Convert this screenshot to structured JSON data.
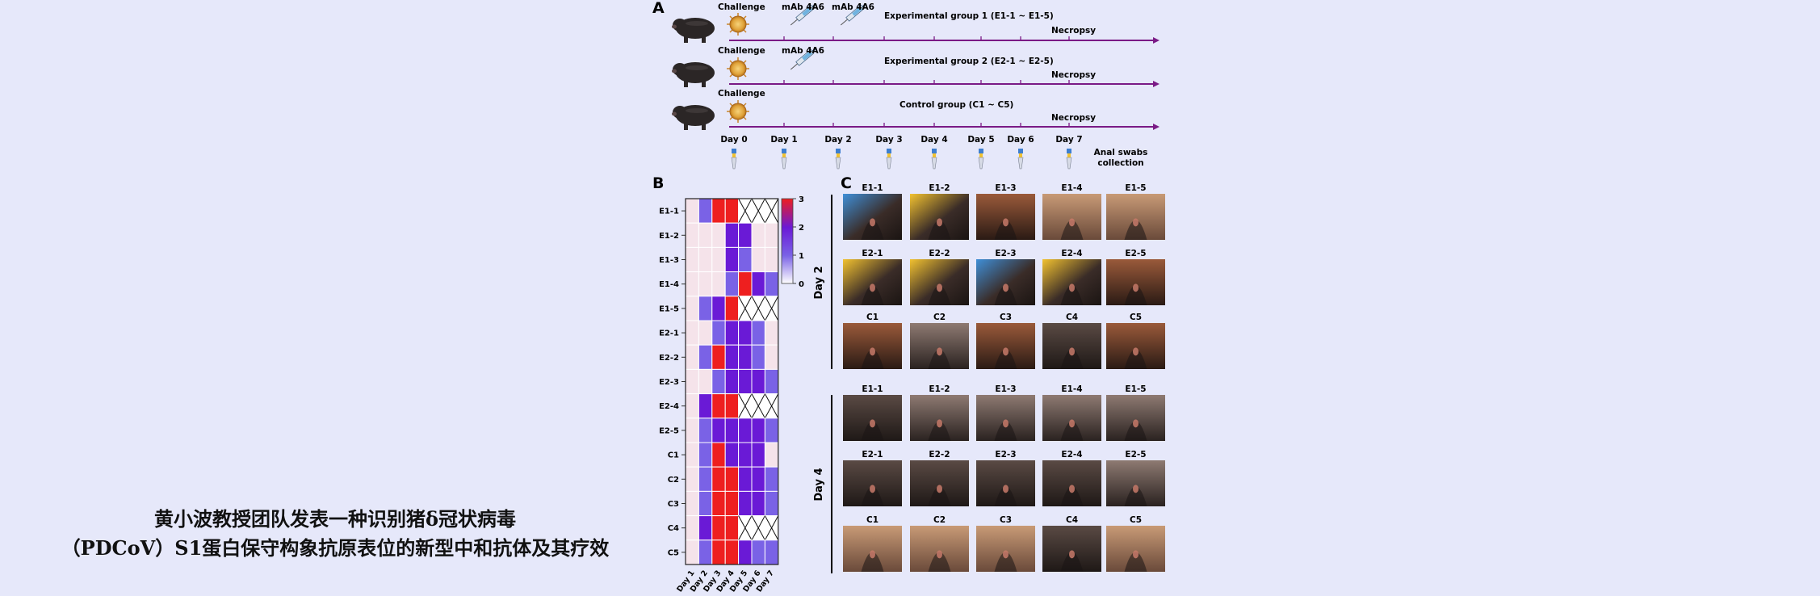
{
  "caption": {
    "line1": "黄小波教授团队发表一种识别猪δ冠状病毒",
    "line2": "（PDCoV）S1蛋白保守构象抗原表位的新型中和抗体及其疗效"
  },
  "panel_a": {
    "letter": "A",
    "challenge_label": "Challenge",
    "mab_label": "mAb 4A6",
    "necropsy_label": "Necropsy",
    "groups": [
      {
        "label": "Experimental group 1 (E1-1 ~ E1-5)",
        "mab_days": [
          1,
          2
        ]
      },
      {
        "label": "Experimental group 2 (E2-1 ~ E2-5)",
        "mab_days": [
          1
        ]
      },
      {
        "label": "Control group (C1 ~ C5)",
        "mab_days": []
      }
    ],
    "days": [
      "Day 0",
      "Day 1",
      "Day 2",
      "Day 3",
      "Day 4",
      "Day 5",
      "Day 6",
      "Day 7"
    ],
    "swab_label_1": "Anal swabs",
    "swab_label_2": "collection"
  },
  "panel_b": {
    "letter": "B",
    "scale_ticks": [
      "3",
      "2",
      "1",
      "0"
    ]
  },
  "panel_c": {
    "letter": "C",
    "day_labels": [
      "Day 2",
      "Day 4"
    ],
    "rows": [
      [
        "E1-1",
        "E1-2",
        "E1-3",
        "E1-4",
        "E1-5"
      ],
      [
        "E2-1",
        "E2-2",
        "E2-3",
        "E2-4",
        "E2-5"
      ],
      [
        "C1",
        "C2",
        "C3",
        "C4",
        "C5"
      ]
    ]
  },
  "chart_data": {
    "type": "heatmap",
    "title": "",
    "rows": [
      "E1-1",
      "E1-2",
      "E1-3",
      "E1-4",
      "E1-5",
      "E2-1",
      "E2-2",
      "E2-3",
      "E2-4",
      "E2-5",
      "C1",
      "C2",
      "C3",
      "C4",
      "C5"
    ],
    "columns": [
      "Day 1",
      "Day 2",
      "Day 3",
      "Day 4",
      "Day 5",
      "Day 6",
      "Day 7"
    ],
    "values": [
      [
        0,
        1,
        3,
        3,
        null,
        null,
        null
      ],
      [
        0,
        0,
        0,
        2,
        2,
        0,
        0
      ],
      [
        0,
        0,
        0,
        2,
        1,
        0,
        0
      ],
      [
        0,
        0,
        0,
        1,
        3,
        2,
        1
      ],
      [
        0,
        1,
        2,
        3,
        null,
        null,
        null
      ],
      [
        0,
        0,
        1,
        2,
        2,
        1,
        0
      ],
      [
        0,
        1,
        3,
        2,
        2,
        1,
        0
      ],
      [
        0,
        0,
        1,
        2,
        2,
        2,
        1
      ],
      [
        0,
        2,
        3,
        3,
        null,
        null,
        null
      ],
      [
        0,
        1,
        2,
        2,
        2,
        2,
        1
      ],
      [
        0,
        1,
        3,
        2,
        2,
        2,
        0
      ],
      [
        0,
        1,
        3,
        3,
        2,
        2,
        1
      ],
      [
        0,
        1,
        3,
        3,
        2,
        2,
        1
      ],
      [
        0,
        2,
        3,
        3,
        null,
        null,
        null
      ],
      [
        0,
        1,
        3,
        3,
        2,
        1,
        1
      ]
    ],
    "scale": [
      0,
      3
    ],
    "colors": {
      "0": "#f5e3ea",
      "1": "#7a62e6",
      "2": "#6a1ad6",
      "3": "#ee1f1f",
      "missing": "#ffffff"
    }
  },
  "colors": {
    "background": "#e6e8fa",
    "timeline": "#7a1a86",
    "divider": "#000000"
  }
}
